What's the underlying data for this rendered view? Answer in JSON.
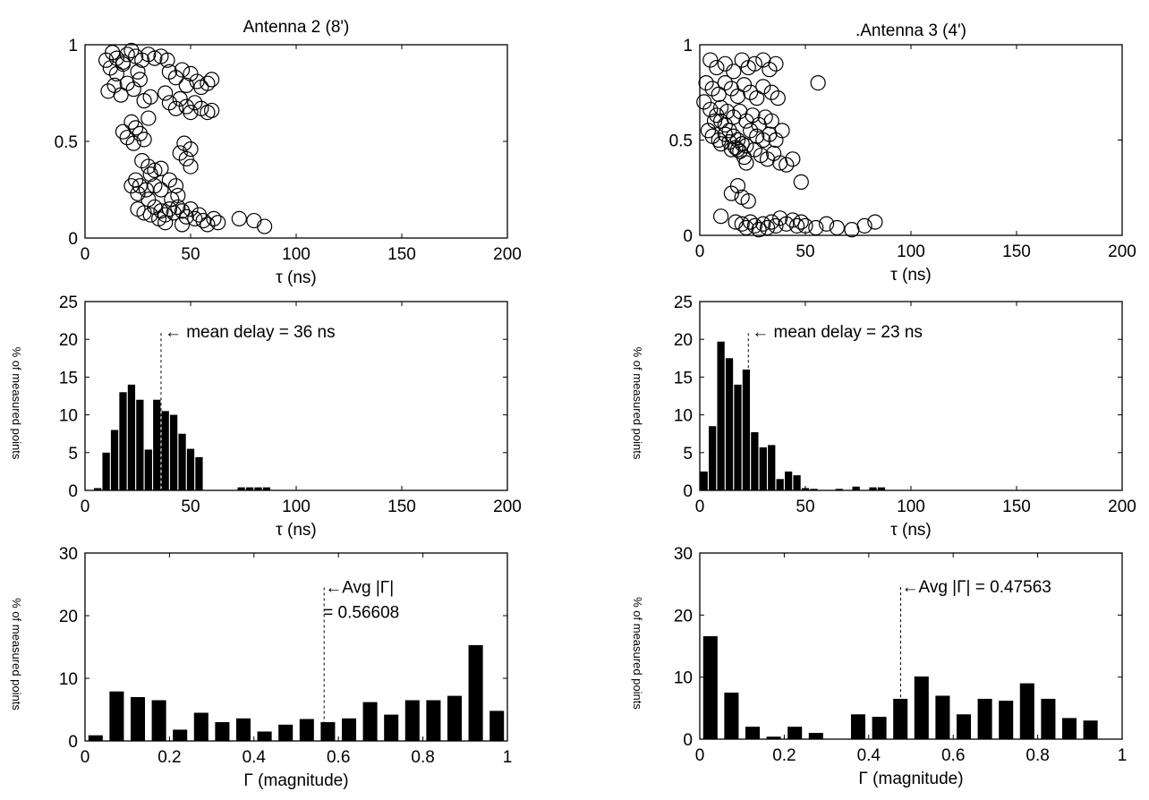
{
  "chart_data": [
    {
      "id": "scatter2",
      "type": "scatter",
      "title": "Antenna 2 (8')",
      "xlabel": "τ (ns)",
      "ylabel": "",
      "xlim": [
        0,
        200
      ],
      "ylim": [
        0,
        1
      ],
      "xticks": [
        "0",
        "50",
        "100",
        "150",
        "200"
      ],
      "yticks": [
        "0",
        "0.5",
        "1"
      ],
      "points": [
        [
          13,
          0.96
        ],
        [
          15,
          0.93
        ],
        [
          18,
          0.91
        ],
        [
          20,
          0.95
        ],
        [
          22,
          0.97
        ],
        [
          24,
          0.94
        ],
        [
          27,
          0.92
        ],
        [
          30,
          0.95
        ],
        [
          33,
          0.93
        ],
        [
          36,
          0.94
        ],
        [
          39,
          0.92
        ],
        [
          12,
          0.88
        ],
        [
          15,
          0.85
        ],
        [
          18,
          0.9
        ],
        [
          10,
          0.92
        ],
        [
          11,
          0.76
        ],
        [
          14,
          0.79
        ],
        [
          17,
          0.74
        ],
        [
          20,
          0.8
        ],
        [
          23,
          0.77
        ],
        [
          26,
          0.82
        ],
        [
          28,
          0.71
        ],
        [
          31,
          0.73
        ],
        [
          25,
          0.86
        ],
        [
          40,
          0.86
        ],
        [
          43,
          0.83
        ],
        [
          46,
          0.87
        ],
        [
          50,
          0.85
        ],
        [
          53,
          0.81
        ],
        [
          55,
          0.78
        ],
        [
          58,
          0.8
        ],
        [
          60,
          0.82
        ],
        [
          48,
          0.79
        ],
        [
          40,
          0.7
        ],
        [
          43,
          0.67
        ],
        [
          45,
          0.72
        ],
        [
          48,
          0.68
        ],
        [
          50,
          0.65
        ],
        [
          52,
          0.7
        ],
        [
          55,
          0.67
        ],
        [
          58,
          0.65
        ],
        [
          60,
          0.66
        ],
        [
          38,
          0.75
        ],
        [
          22,
          0.6
        ],
        [
          24,
          0.57
        ],
        [
          26,
          0.54
        ],
        [
          20,
          0.52
        ],
        [
          18,
          0.55
        ],
        [
          28,
          0.51
        ],
        [
          23,
          0.49
        ],
        [
          30,
          0.62
        ],
        [
          47,
          0.49
        ],
        [
          50,
          0.46
        ],
        [
          45,
          0.44
        ],
        [
          48,
          0.41
        ],
        [
          50,
          0.37
        ],
        [
          27,
          0.4
        ],
        [
          30,
          0.37
        ],
        [
          33,
          0.35
        ],
        [
          36,
          0.36
        ],
        [
          31,
          0.33
        ],
        [
          24,
          0.3
        ],
        [
          26,
          0.27
        ],
        [
          29,
          0.25
        ],
        [
          22,
          0.27
        ],
        [
          25,
          0.23
        ],
        [
          33,
          0.27
        ],
        [
          36,
          0.25
        ],
        [
          40,
          0.3
        ],
        [
          43,
          0.27
        ],
        [
          44,
          0.22
        ],
        [
          41,
          0.2
        ],
        [
          30,
          0.2
        ],
        [
          25,
          0.15
        ],
        [
          28,
          0.13
        ],
        [
          31,
          0.12
        ],
        [
          33,
          0.16
        ],
        [
          36,
          0.14
        ],
        [
          38,
          0.12
        ],
        [
          40,
          0.15
        ],
        [
          42,
          0.13
        ],
        [
          44,
          0.16
        ],
        [
          46,
          0.14
        ],
        [
          48,
          0.11
        ],
        [
          50,
          0.15
        ],
        [
          52,
          0.1
        ],
        [
          54,
          0.12
        ],
        [
          56,
          0.09
        ],
        [
          58,
          0.07
        ],
        [
          61,
          0.1
        ],
        [
          63,
          0.08
        ],
        [
          35,
          0.1
        ],
        [
          38,
          0.08
        ],
        [
          46,
          0.07
        ],
        [
          73,
          0.1
        ],
        [
          80,
          0.09
        ],
        [
          85,
          0.06
        ]
      ]
    },
    {
      "id": "scatter3",
      "type": "scatter",
      "title": ".Antenna 3 (4')",
      "xlabel": "τ (ns)",
      "ylabel": "",
      "xlim": [
        0,
        200
      ],
      "ylim": [
        0,
        1
      ],
      "xticks": [
        "0",
        "50",
        "100",
        "150",
        "200"
      ],
      "yticks": [
        "0",
        "0.5",
        "1"
      ],
      "points": [
        [
          5,
          0.92
        ],
        [
          8,
          0.88
        ],
        [
          12,
          0.9
        ],
        [
          16,
          0.86
        ],
        [
          20,
          0.92
        ],
        [
          23,
          0.88
        ],
        [
          26,
          0.9
        ],
        [
          30,
          0.92
        ],
        [
          33,
          0.87
        ],
        [
          36,
          0.9
        ],
        [
          3,
          0.8
        ],
        [
          6,
          0.77
        ],
        [
          9,
          0.74
        ],
        [
          12,
          0.8
        ],
        [
          15,
          0.77
        ],
        [
          18,
          0.73
        ],
        [
          21,
          0.79
        ],
        [
          24,
          0.75
        ],
        [
          27,
          0.72
        ],
        [
          30,
          0.78
        ],
        [
          34,
          0.75
        ],
        [
          37,
          0.72
        ],
        [
          2,
          0.7
        ],
        [
          5,
          0.66
        ],
        [
          8,
          0.63
        ],
        [
          10,
          0.6
        ],
        [
          12,
          0.58
        ],
        [
          14,
          0.55
        ],
        [
          16,
          0.52
        ],
        [
          18,
          0.5
        ],
        [
          20,
          0.48
        ],
        [
          22,
          0.47
        ],
        [
          4,
          0.55
        ],
        [
          6,
          0.52
        ],
        [
          9,
          0.5
        ],
        [
          10,
          0.48
        ],
        [
          12,
          0.53
        ],
        [
          14,
          0.49
        ],
        [
          15,
          0.45
        ],
        [
          17,
          0.46
        ],
        [
          18,
          0.45
        ],
        [
          19,
          0.44
        ],
        [
          21,
          0.41
        ],
        [
          22,
          0.38
        ],
        [
          7,
          0.6
        ],
        [
          10,
          0.67
        ],
        [
          13,
          0.65
        ],
        [
          16,
          0.62
        ],
        [
          19,
          0.65
        ],
        [
          22,
          0.6
        ],
        [
          25,
          0.63
        ],
        [
          28,
          0.58
        ],
        [
          31,
          0.62
        ],
        [
          34,
          0.6
        ],
        [
          24,
          0.55
        ],
        [
          27,
          0.52
        ],
        [
          30,
          0.5
        ],
        [
          33,
          0.53
        ],
        [
          36,
          0.5
        ],
        [
          39,
          0.55
        ],
        [
          26,
          0.45
        ],
        [
          29,
          0.42
        ],
        [
          32,
          0.4
        ],
        [
          35,
          0.43
        ],
        [
          38,
          0.38
        ],
        [
          41,
          0.37
        ],
        [
          44,
          0.4
        ],
        [
          48,
          0.28
        ],
        [
          56,
          0.8
        ],
        [
          15,
          0.22
        ],
        [
          18,
          0.26
        ],
        [
          20,
          0.2
        ],
        [
          23,
          0.18
        ],
        [
          10,
          0.1
        ],
        [
          17,
          0.07
        ],
        [
          20,
          0.06
        ],
        [
          22,
          0.04
        ],
        [
          24,
          0.07
        ],
        [
          26,
          0.05
        ],
        [
          28,
          0.03
        ],
        [
          30,
          0.06
        ],
        [
          32,
          0.04
        ],
        [
          34,
          0.07
        ],
        [
          36,
          0.05
        ],
        [
          38,
          0.09
        ],
        [
          41,
          0.06
        ],
        [
          44,
          0.08
        ],
        [
          46,
          0.05
        ],
        [
          48,
          0.07
        ],
        [
          50,
          0.05
        ],
        [
          55,
          0.04
        ],
        [
          60,
          0.06
        ],
        [
          65,
          0.04
        ],
        [
          72,
          0.03
        ],
        [
          78,
          0.05
        ],
        [
          83,
          0.07
        ]
      ]
    },
    {
      "id": "delay2",
      "type": "bar",
      "title": "",
      "xlabel": "τ (ns)",
      "ylabel": "% of measured points",
      "xlim": [
        0,
        200
      ],
      "ylim": [
        0,
        25
      ],
      "xticks": [
        "0",
        "50",
        "100",
        "150",
        "200"
      ],
      "yticks": [
        "0",
        "5",
        "10",
        "15",
        "20",
        "25"
      ],
      "bar_width": 3.5,
      "x": [
        6,
        10,
        14,
        18,
        22,
        26,
        30,
        34,
        38,
        42,
        46,
        50,
        54,
        58,
        62,
        66,
        70,
        74,
        78,
        82,
        86
      ],
      "values": [
        0.3,
        5,
        8,
        13,
        14,
        12,
        5.4,
        12,
        10.5,
        10,
        7.5,
        5.5,
        4.4,
        0,
        0,
        0,
        0,
        0.4,
        0.4,
        0.4,
        0.4
      ],
      "mean_line": 36,
      "annotation": "← mean delay = 36 ns"
    },
    {
      "id": "delay3",
      "type": "bar",
      "title": "",
      "xlabel": "τ (ns)",
      "ylabel": "% of measured points",
      "xlim": [
        0,
        200
      ],
      "ylim": [
        0,
        25
      ],
      "xticks": [
        "0",
        "50",
        "100",
        "150",
        "200"
      ],
      "yticks": [
        "0",
        "5",
        "10",
        "15",
        "20",
        "25"
      ],
      "bar_width": 3.5,
      "x": [
        2,
        6,
        10,
        14,
        18,
        22,
        26,
        30,
        34,
        38,
        42,
        46,
        50,
        54,
        58,
        62,
        66,
        70,
        74,
        78,
        82,
        86
      ],
      "values": [
        2.5,
        8.5,
        19.7,
        17.5,
        14,
        16,
        7.7,
        5.7,
        6,
        1.5,
        2.5,
        2,
        0.3,
        0.2,
        0,
        0,
        0.2,
        0,
        0.5,
        0,
        0.4,
        0.4
      ],
      "mean_line": 23,
      "annotation": "← mean delay = 23 ns"
    },
    {
      "id": "gamma2",
      "type": "bar",
      "title": "",
      "xlabel": "Γ (magnitude)",
      "ylabel": "% of measured points",
      "xlim": [
        0,
        1
      ],
      "ylim": [
        0,
        30
      ],
      "xticks": [
        "0",
        "0.2",
        "0.4",
        "0.6",
        "0.8",
        "1"
      ],
      "yticks": [
        "0",
        "10",
        "20",
        "30"
      ],
      "bar_width": 0.034,
      "x": [
        0.025,
        0.075,
        0.125,
        0.175,
        0.225,
        0.275,
        0.325,
        0.375,
        0.425,
        0.475,
        0.525,
        0.575,
        0.625,
        0.675,
        0.725,
        0.775,
        0.825,
        0.875,
        0.925,
        0.975
      ],
      "values": [
        0.9,
        7.9,
        7,
        6.5,
        1.8,
        4.5,
        3,
        3.6,
        1.5,
        2.6,
        3.5,
        3,
        3.6,
        6.2,
        4.2,
        6.5,
        6.5,
        7.2,
        15.3,
        4.8
      ],
      "mean_line": 0.56608,
      "annotation": "←Avg |Γ|",
      "annotation2": "= 0.56608"
    },
    {
      "id": "gamma3",
      "type": "bar",
      "title": "",
      "xlabel": "Γ (magnitude)",
      "ylabel": "% of measured points",
      "xlim": [
        0,
        1
      ],
      "ylim": [
        0,
        30
      ],
      "xticks": [
        "0",
        "0.2",
        "0.4",
        "0.6",
        "0.8",
        "1"
      ],
      "yticks": [
        "0",
        "10",
        "20",
        "30"
      ],
      "bar_width": 0.034,
      "x": [
        0.025,
        0.075,
        0.125,
        0.175,
        0.225,
        0.275,
        0.325,
        0.375,
        0.425,
        0.475,
        0.525,
        0.575,
        0.625,
        0.675,
        0.725,
        0.775,
        0.825,
        0.875,
        0.925,
        0.975
      ],
      "values": [
        16.6,
        7.5,
        2,
        0.4,
        2,
        1,
        0,
        4,
        3.6,
        6.5,
        10.1,
        7,
        4,
        6.5,
        6.2,
        9,
        6.5,
        3.4,
        3,
        0
      ],
      "mean_line": 0.47563,
      "annotation": "←Avg |Γ| = 0.47563"
    }
  ]
}
